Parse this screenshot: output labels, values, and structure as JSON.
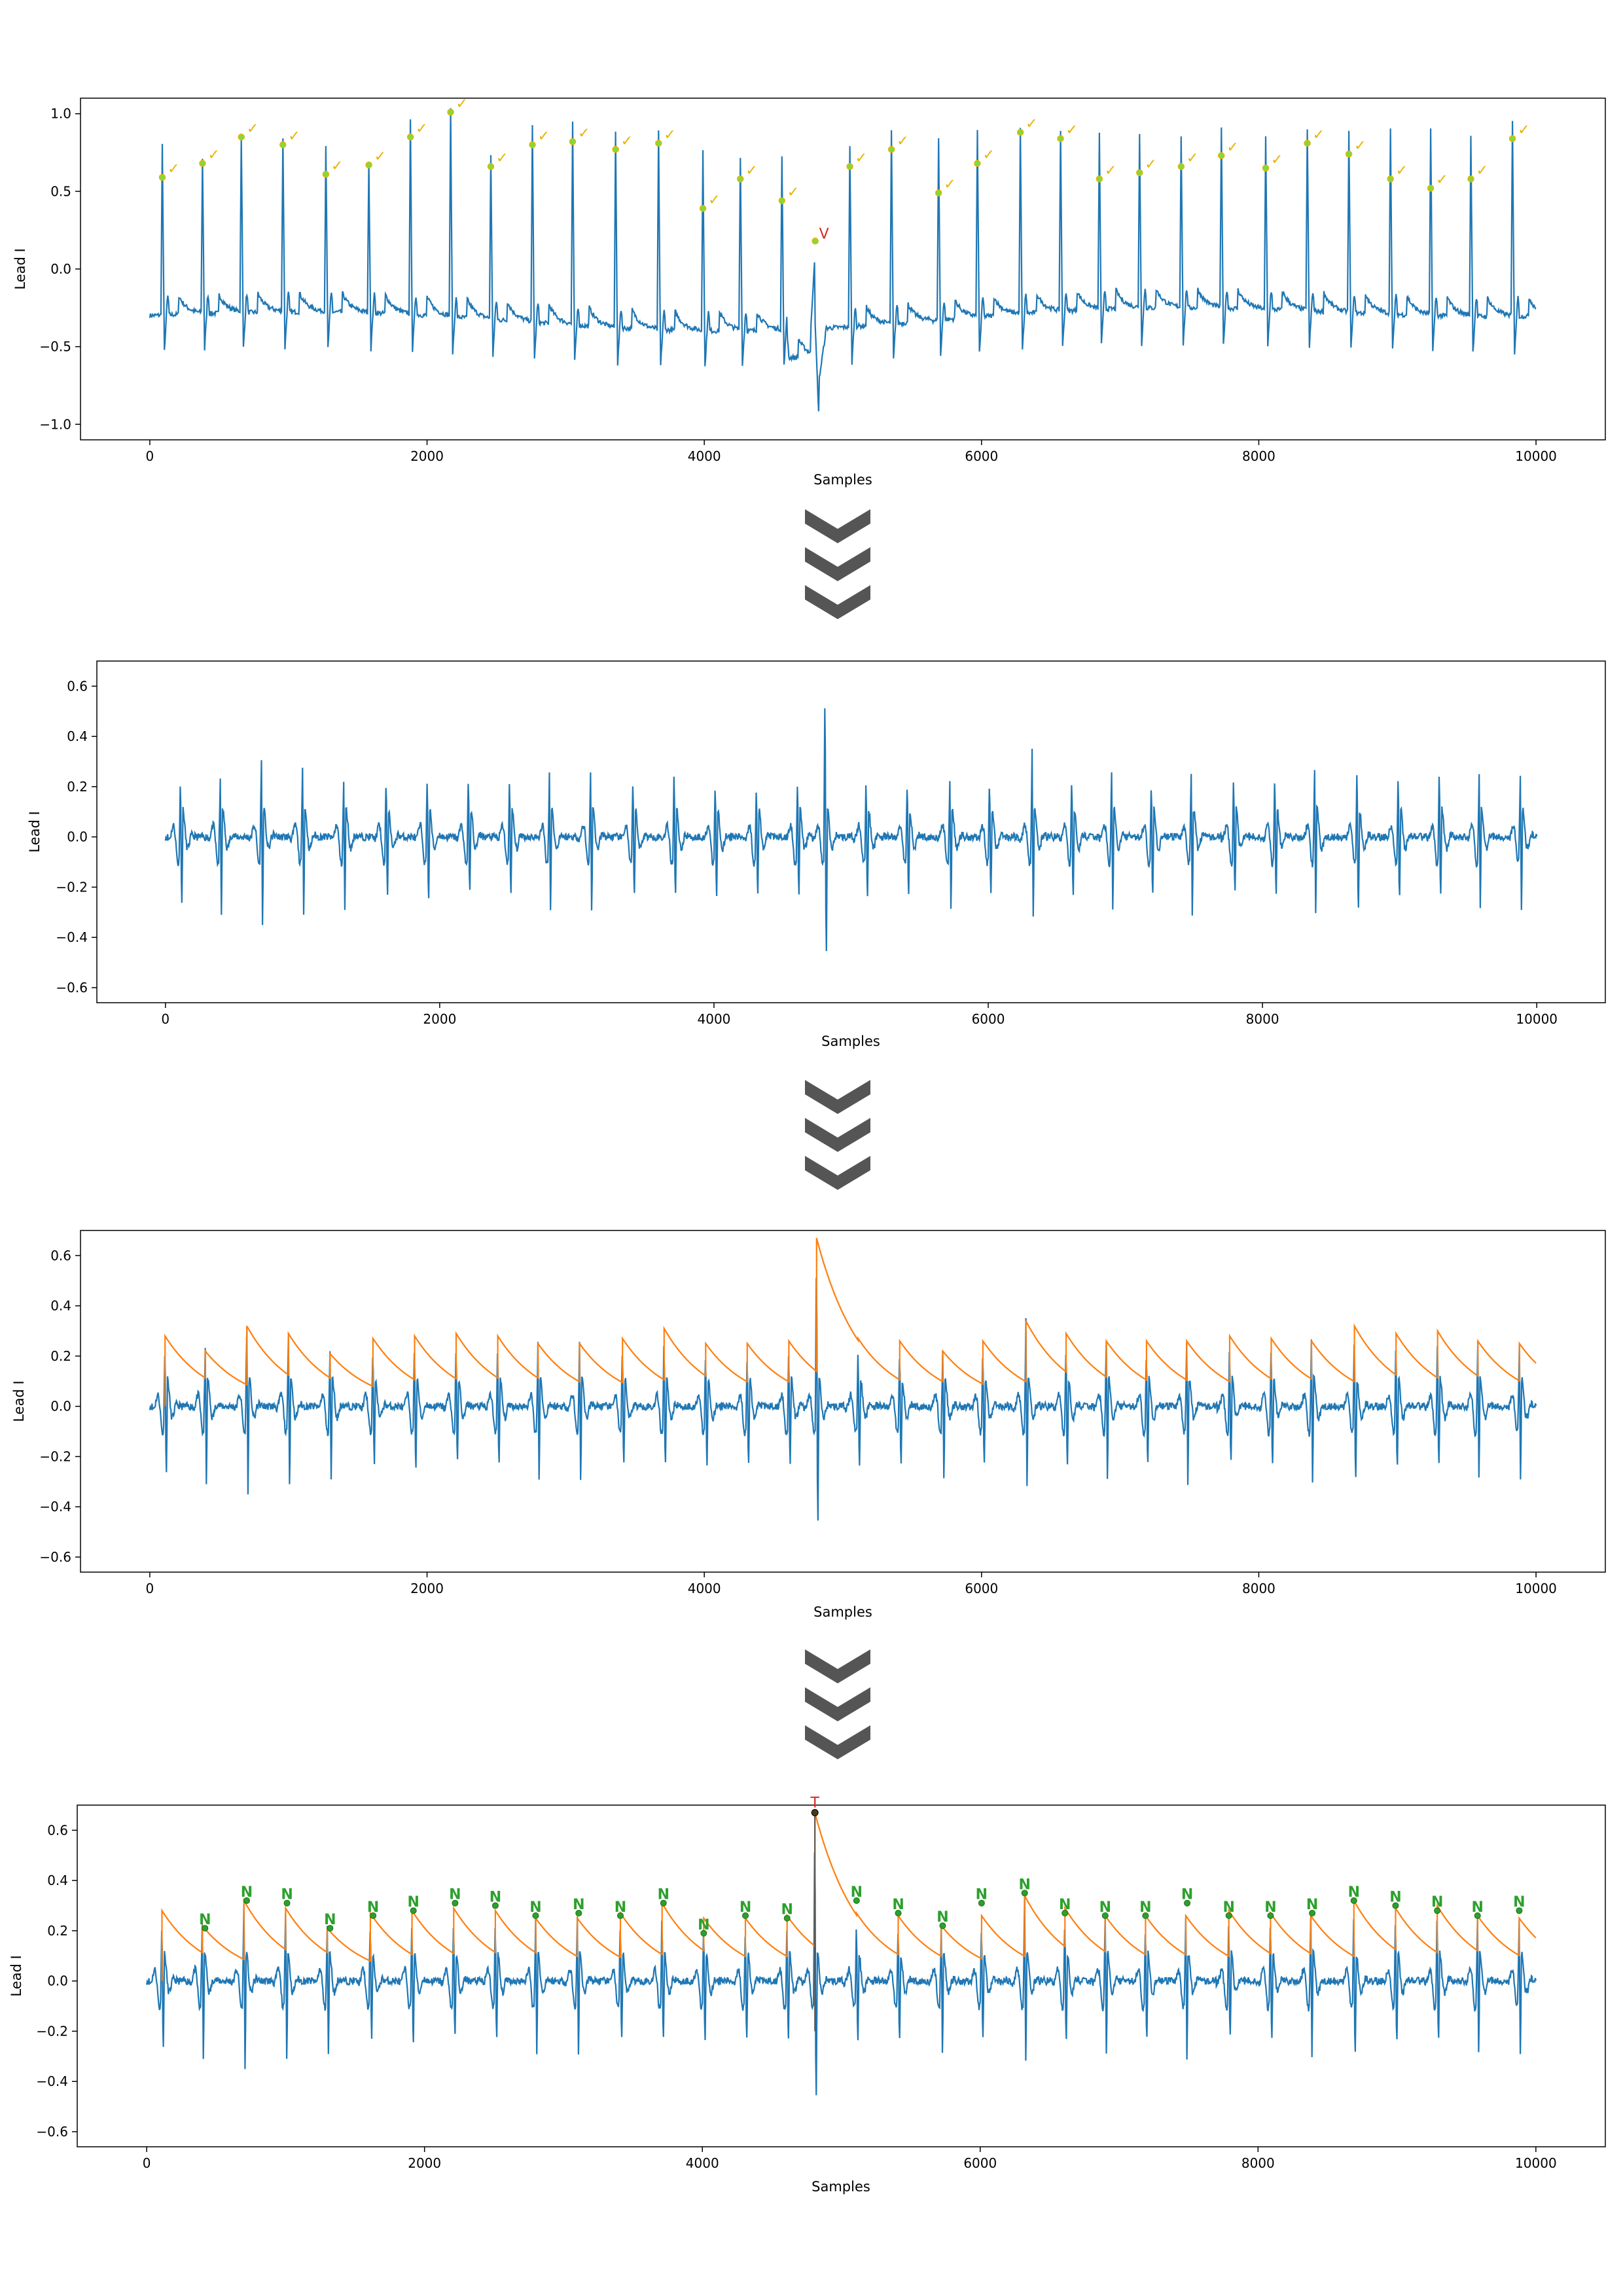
{
  "figure": {
    "arrow_icon_name": "triple-chevron-down-icon",
    "arrow_color": "#555555"
  },
  "colors": {
    "signal": "#1f77b4",
    "envelope": "#ff7f0e",
    "normal_marker_fill": "#7fdc3c",
    "normal_marker_stroke": "#e8b400",
    "ectopic_label": "#d62728",
    "beat_label_green": "#2ca02c"
  },
  "chart_data": [
    {
      "type": "line",
      "panel": "raw-ecg",
      "xlabel": "Samples",
      "ylabel": "Lead I",
      "xlim": [
        -500,
        10500
      ],
      "ylim": [
        -1.1,
        1.1
      ],
      "xticks": [
        0,
        2000,
        4000,
        6000,
        8000,
        10000
      ],
      "yticks": [
        -1.0,
        -0.5,
        0.0,
        0.5,
        1.0
      ],
      "ytick_labels": [
        "−1.0",
        "−0.5",
        "0.0",
        "0.5",
        "1.0"
      ],
      "baseline": -0.3,
      "beats": {
        "x": [
          90,
          380,
          660,
          960,
          1270,
          1580,
          1880,
          2170,
          2460,
          2760,
          3050,
          3360,
          3670,
          3990,
          4260,
          4560,
          5050,
          5350,
          5690,
          5970,
          6280,
          6570,
          6850,
          7140,
          7440,
          7730,
          8050,
          8350,
          8650,
          8950,
          9240,
          9530,
          9830
        ],
        "peak": [
          0.8,
          0.7,
          0.85,
          0.85,
          0.8,
          0.7,
          0.95,
          1.02,
          0.72,
          0.92,
          0.93,
          0.88,
          0.88,
          0.78,
          0.72,
          0.72,
          0.78,
          0.88,
          0.85,
          0.9,
          0.9,
          0.88,
          0.86,
          0.87,
          0.86,
          0.9,
          0.85,
          0.9,
          0.88,
          0.92,
          0.9,
          0.85,
          0.95
        ],
        "marker": [
          0.59,
          0.68,
          0.85,
          0.8,
          0.61,
          0.67,
          0.85,
          1.01,
          0.66,
          0.8,
          0.82,
          0.77,
          0.81,
          0.39,
          0.58,
          0.44,
          0.66,
          0.77,
          0.49,
          0.68,
          0.88,
          0.84,
          0.58,
          0.62,
          0.66,
          0.73,
          0.65,
          0.81,
          0.74,
          0.58,
          0.52,
          0.58,
          0.84
        ],
        "label": "✓"
      },
      "ectopic_beat": {
        "x": 4800,
        "marker": 0.18,
        "min": -1.04,
        "label": "V"
      }
    },
    {
      "type": "line",
      "panel": "filtered-ecg",
      "xlabel": "Samples",
      "ylabel": "Lead I",
      "xlim": [
        -500,
        10500
      ],
      "ylim": [
        -0.66,
        0.7
      ],
      "xticks": [
        0,
        2000,
        4000,
        6000,
        8000,
        10000
      ],
      "yticks": [
        -0.6,
        -0.4,
        -0.2,
        0.0,
        0.2,
        0.4,
        0.6
      ],
      "ytick_labels": [
        "−0.6",
        "−0.4",
        "−0.2",
        "0.0",
        "0.2",
        "0.4",
        "0.6"
      ],
      "beats": {
        "x": [
          110,
          400,
          700,
          1000,
          1300,
          1610,
          1910,
          2210,
          2510,
          2800,
          3100,
          3410,
          3710,
          4010,
          4310,
          4610,
          5110,
          5410,
          5720,
          6010,
          6320,
          6610,
          6900,
          7190,
          7480,
          7790,
          8090,
          8380,
          8690,
          8990,
          9290,
          9580,
          9880
        ],
        "pos": [
          0.28,
          0.22,
          0.32,
          0.29,
          0.21,
          0.27,
          0.28,
          0.29,
          0.28,
          0.25,
          0.25,
          0.27,
          0.31,
          0.25,
          0.25,
          0.26,
          0.27,
          0.26,
          0.22,
          0.26,
          0.34,
          0.29,
          0.26,
          0.26,
          0.26,
          0.28,
          0.27,
          0.26,
          0.32,
          0.29,
          0.3,
          0.26,
          0.25
        ],
        "neg": [
          -0.33,
          -0.3,
          -0.35,
          -0.31,
          -0.29,
          -0.29,
          -0.32,
          -0.3,
          -0.3,
          -0.29,
          -0.29,
          -0.31,
          -0.3,
          -0.3,
          -0.29,
          -0.3,
          -0.3,
          -0.31,
          -0.29,
          -0.3,
          -0.33,
          -0.3,
          -0.3,
          -0.3,
          -0.3,
          -0.29,
          -0.29,
          -0.3,
          -0.38,
          -0.32,
          -0.3,
          -0.29,
          -0.3
        ]
      },
      "ectopic_beat": {
        "x": 4810,
        "pos": 0.67,
        "neg": -0.61
      }
    },
    {
      "type": "line",
      "panel": "envelope",
      "xlabel": "Samples",
      "ylabel": "Lead I",
      "xlim": [
        -500,
        10500
      ],
      "ylim": [
        -0.66,
        0.7
      ],
      "xticks": [
        0,
        2000,
        4000,
        6000,
        8000,
        10000
      ],
      "yticks": [
        -0.6,
        -0.4,
        -0.2,
        0.0,
        0.2,
        0.4,
        0.6
      ],
      "ytick_labels": [
        "−0.6",
        "−0.4",
        "−0.2",
        "0.0",
        "0.2",
        "0.4",
        "0.6"
      ],
      "series": [
        {
          "role": "filtered-signal",
          "source_panel": 1
        },
        {
          "role": "envelope",
          "decay_samples": 320,
          "end_value": 0.13
        }
      ]
    },
    {
      "type": "line",
      "panel": "classified",
      "xlabel": "Samples",
      "ylabel": "Lead I",
      "xlim": [
        -500,
        10500
      ],
      "ylim": [
        -0.66,
        0.7
      ],
      "xticks": [
        0,
        2000,
        4000,
        6000,
        8000,
        10000
      ],
      "yticks": [
        -0.6,
        -0.4,
        -0.2,
        0.0,
        0.2,
        0.4,
        0.6
      ],
      "ytick_labels": [
        "−0.6",
        "−0.4",
        "−0.2",
        "0.0",
        "0.2",
        "0.4",
        "0.6"
      ],
      "beat_labels": {
        "x": [
          420,
          720,
          1010,
          1320,
          1630,
          1920,
          2220,
          2510,
          2800,
          3110,
          3410,
          3720,
          4010,
          4310,
          4610,
          5110,
          5410,
          5730,
          6010,
          6320,
          6610,
          6900,
          7190,
          7490,
          7790,
          8090,
          8390,
          8690,
          8990,
          9290,
          9580,
          9880
        ],
        "y": [
          0.21,
          0.32,
          0.31,
          0.21,
          0.26,
          0.28,
          0.31,
          0.3,
          0.26,
          0.27,
          0.26,
          0.31,
          0.19,
          0.26,
          0.25,
          0.32,
          0.27,
          0.22,
          0.31,
          0.35,
          0.27,
          0.26,
          0.26,
          0.31,
          0.26,
          0.26,
          0.27,
          0.32,
          0.3,
          0.28,
          0.26,
          0.28
        ],
        "label": "N"
      },
      "ectopic_beat": {
        "x": 4810,
        "y": 0.67,
        "label": "T"
      }
    }
  ]
}
